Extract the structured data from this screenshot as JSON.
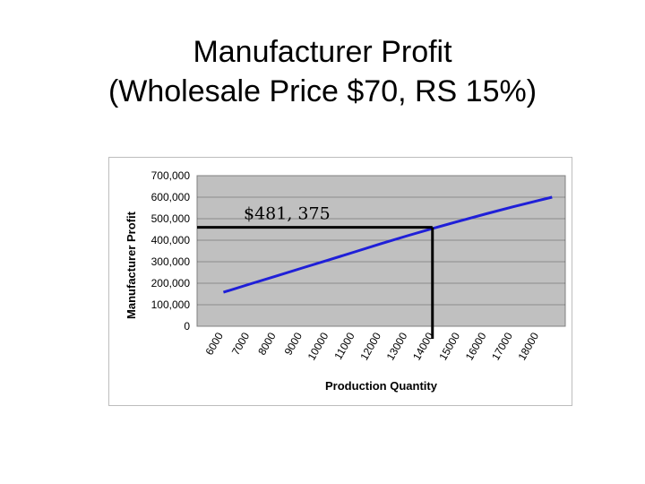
{
  "slide": {
    "title_line1": "Manufacturer Profit",
    "title_line2": "(Wholesale Price $70, RS 15%)"
  },
  "chart_data": {
    "type": "line",
    "xlabel": "Production Quantity",
    "ylabel": "Manufacturer Profit",
    "categories": [
      "6000",
      "7000",
      "8000",
      "9000",
      "10000",
      "11000",
      "12000",
      "13000",
      "14000",
      "15000",
      "16000",
      "17000",
      "18000"
    ],
    "ylim": [
      0,
      700000
    ],
    "y_ticks": [
      "0",
      "100,000",
      "200,000",
      "300,000",
      "400,000",
      "500,000",
      "600,000",
      "700,000"
    ],
    "grid": true,
    "series": [
      {
        "x": [
          6000,
          7000,
          8000,
          9000,
          10000,
          11000,
          12000,
          13000,
          14000,
          15000,
          16000,
          17000,
          18000,
          18500
        ],
        "values": [
          158000,
          196000,
          233000,
          271000,
          308000,
          346000,
          384000,
          421000,
          456000,
          490000,
          523000,
          555000,
          585000,
          600000
        ],
        "color": "#1f1fd8"
      }
    ],
    "annotation": {
      "label": "$481, 375",
      "x": 13950,
      "y": 460000
    },
    "plot_bg": "#c0c0c0",
    "annotation_line_color": "#000000"
  }
}
